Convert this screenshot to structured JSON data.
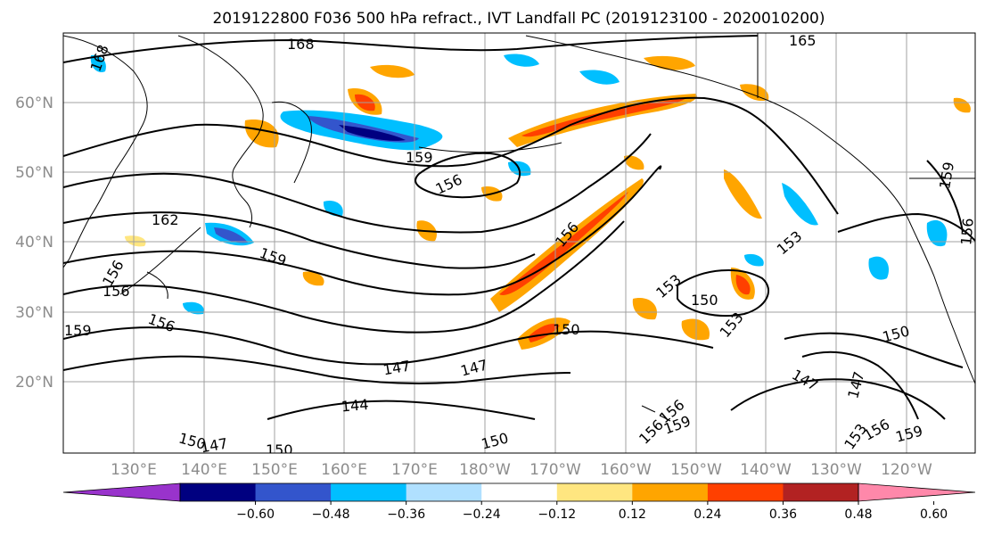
{
  "title": "2019122800 F036 500 hPa refract., IVT Landfall PC (2019123100 - 2020010200)",
  "lat_ticks": [
    "60°N",
    "50°N",
    "40°N",
    "30°N",
    "20°N"
  ],
  "lon_ticks": [
    "130°E",
    "140°E",
    "150°E",
    "160°E",
    "170°E",
    "180°W",
    "170°W",
    "160°W",
    "150°W",
    "140°W",
    "130°W",
    "120°W"
  ],
  "contour_labels": [
    "168",
    "168",
    "165",
    "159",
    "156",
    "162",
    "159",
    "156",
    "156",
    "156",
    "159",
    "156",
    "153",
    "153",
    "150",
    "153",
    "150",
    "150",
    "147",
    "147",
    "144",
    "147",
    "150",
    "150",
    "150",
    "147",
    "147",
    "156",
    "153",
    "156",
    "159",
    "159",
    "156",
    "159",
    "156"
  ],
  "colorbar": {
    "ticks": [
      "−0.60",
      "−0.48",
      "−0.36",
      "−0.24",
      "−0.12",
      "0.12",
      "0.24",
      "0.36",
      "0.48",
      "0.60"
    ],
    "colors": [
      "#9933cc",
      "#000080",
      "#3355cc",
      "#00bfff",
      "#b0e0ff",
      "#ffffff",
      "#ffe680",
      "#ffa500",
      "#ff4000",
      "#b22222",
      "#ff88aa"
    ]
  },
  "colors": {
    "contour": "#000000",
    "coast": "#000000",
    "grid": "#a0a0a0",
    "tick_label": "#8c8c8c"
  }
}
